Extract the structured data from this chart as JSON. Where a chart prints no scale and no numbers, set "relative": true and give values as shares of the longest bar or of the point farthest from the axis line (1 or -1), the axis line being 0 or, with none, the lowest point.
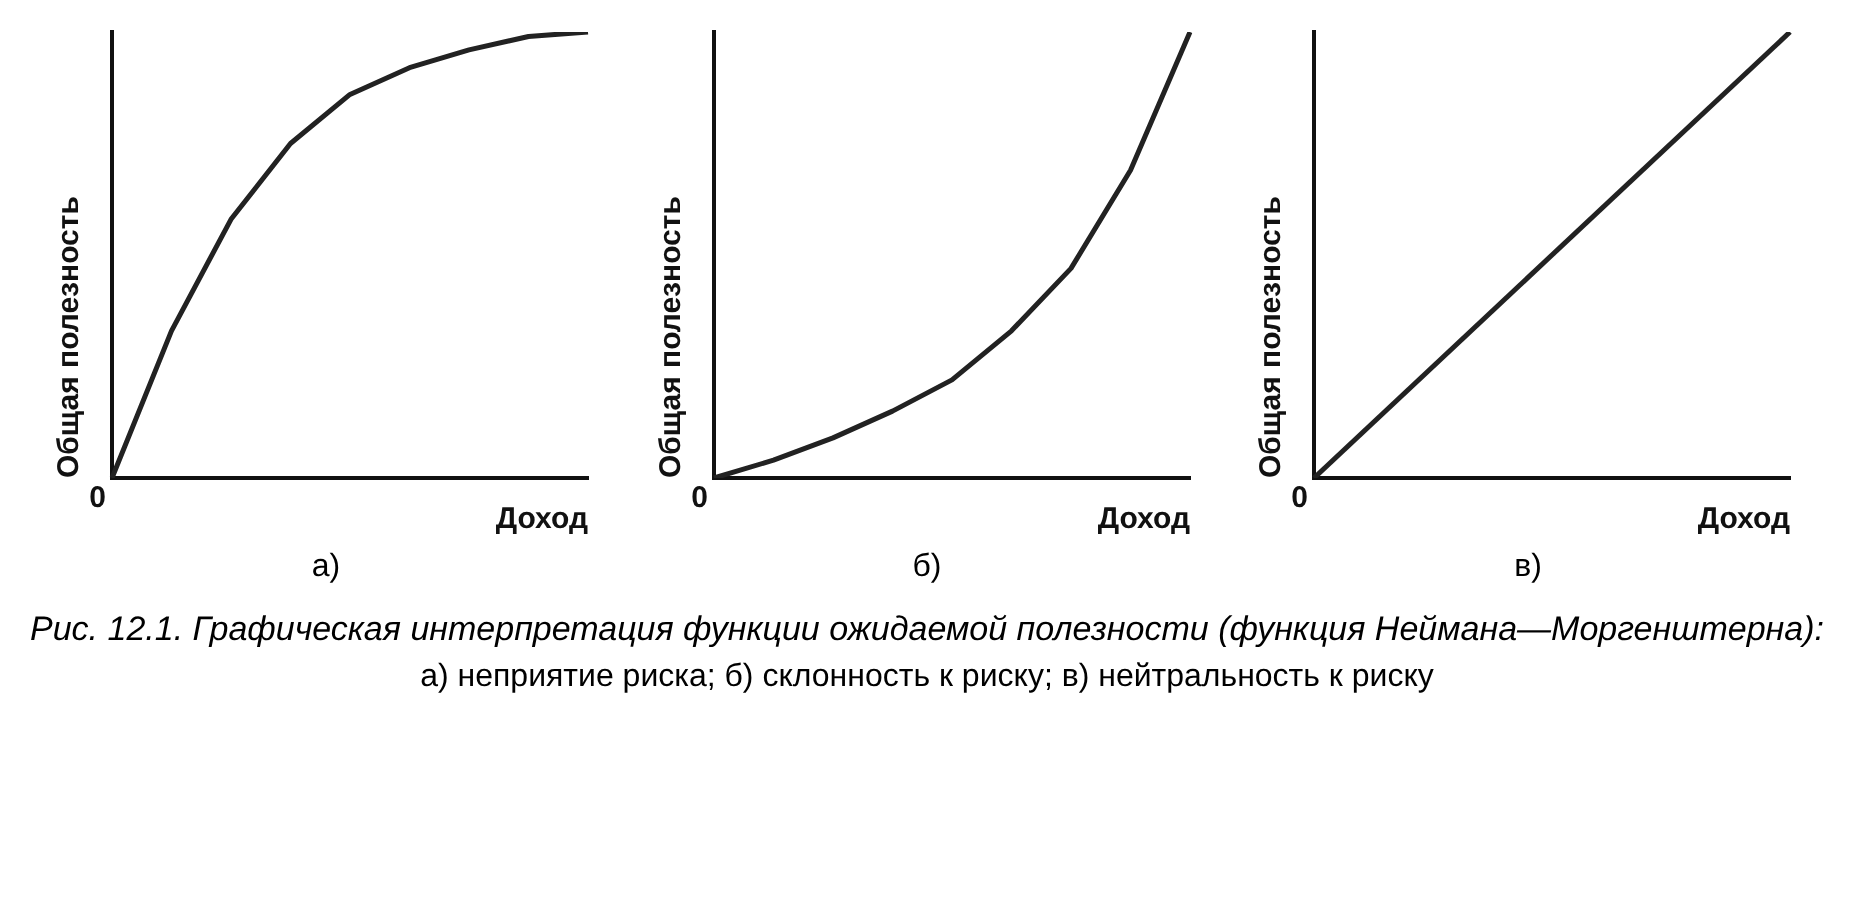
{
  "chart_data": [
    {
      "type": "line",
      "relative": true,
      "xlabel": "Доход",
      "ylabel": "Общая полезность",
      "legend": false,
      "marker": "none",
      "subtitle": "а)",
      "annotations": [
        "0"
      ],
      "categories": [
        null,
        null,
        null,
        null,
        null,
        null,
        null,
        null,
        null
      ],
      "series": [
        {
          "color": "#222222",
          "values": [
            0,
            0.33,
            0.58,
            0.75,
            0.86,
            0.92,
            0.96,
            0.99,
            1
          ]
        }
      ]
    },
    {
      "type": "line",
      "relative": true,
      "xlabel": "Доход",
      "ylabel": "Общая полезность",
      "legend": false,
      "marker": "none",
      "subtitle": "б)",
      "annotations": [
        "0"
      ],
      "categories": [
        null,
        null,
        null,
        null,
        null,
        null,
        null,
        null,
        null
      ],
      "series": [
        {
          "color": "#222222",
          "values": [
            0,
            0.04,
            0.09,
            0.15,
            0.22,
            0.33,
            0.47,
            0.69,
            1
          ]
        }
      ]
    },
    {
      "type": "line",
      "relative": true,
      "xlabel": "Доход",
      "ylabel": "Общая полезность",
      "legend": false,
      "marker": "none",
      "subtitle": "в)",
      "annotations": [
        "0",
        "Рис. 12.1. Графическая интерпретация функции ожидаемой полезности (функция Неймана—Моргенштерна):",
        "а) неприятие риска; б) склонность к риску; в) нейтральность к риску"
      ],
      "categories": [
        null,
        null
      ],
      "series": [
        {
          "color": "#222222",
          "values": [
            0,
            1
          ]
        }
      ]
    }
  ]
}
